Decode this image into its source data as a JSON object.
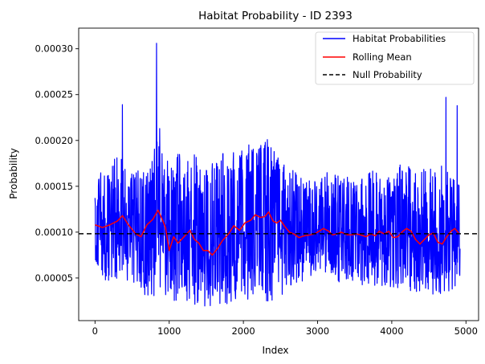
{
  "chart_data": {
    "type": "line",
    "title": "Habitat Probability - ID 2393",
    "xlabel": "Index",
    "ylabel": "Probability",
    "xlim": [
      -220,
      5170
    ],
    "ylim": [
      3.5e-06,
      0.0003225
    ],
    "x_ticks": [
      0,
      1000,
      2000,
      3000,
      4000,
      5000
    ],
    "x_tick_labels": [
      "0",
      "1000",
      "2000",
      "3000",
      "4000",
      "5000"
    ],
    "y_ticks": [
      5e-05,
      0.0001,
      0.00015,
      0.0002,
      0.00025,
      0.0003
    ],
    "y_tick_labels": [
      "0.00005",
      "0.00010",
      "0.00015",
      "0.00020",
      "0.00025",
      "0.00030"
    ],
    "grid": false,
    "legend_position": "top-right",
    "series": [
      {
        "name": "Habitat Probabilities",
        "color": "#0000ff",
        "style": "solid",
        "x_start": 0,
        "x_end": 4920,
        "envelope_x": [
          0,
          100,
          200,
          300,
          400,
          500,
          600,
          700,
          800,
          900,
          1000,
          1100,
          1200,
          1300,
          1400,
          1500,
          1600,
          1700,
          1800,
          1900,
          2000,
          2100,
          2200,
          2300,
          2400,
          2500,
          2600,
          2700,
          2800,
          2900,
          3000,
          3100,
          3200,
          3300,
          3400,
          3500,
          3600,
          3700,
          3800,
          3900,
          4000,
          4100,
          4200,
          4300,
          4400,
          4500,
          4600,
          4700,
          4800,
          4900
        ],
        "envelope_high": [
          0.000145,
          0.000175,
          0.00018,
          0.00019,
          0.00018,
          0.00017,
          0.00017,
          0.00018,
          0.000205,
          0.00019,
          0.000175,
          0.00019,
          0.00018,
          0.00019,
          0.00018,
          0.000175,
          0.000175,
          0.00019,
          0.000185,
          0.000195,
          0.00019,
          0.0002,
          0.000195,
          0.000205,
          0.00019,
          0.00018,
          0.000175,
          0.000165,
          0.000165,
          0.00016,
          0.00016,
          0.000165,
          0.000165,
          0.00016,
          0.00016,
          0.000155,
          0.00016,
          0.000165,
          0.00017,
          0.00016,
          0.000165,
          0.000175,
          0.000175,
          0.000165,
          0.00017,
          0.00017,
          0.00017,
          0.000175,
          0.00017,
          0.000165
        ],
        "envelope_low": [
          7e-05,
          5e-05,
          4.5e-05,
          4e-05,
          4.5e-05,
          4e-05,
          3.5e-05,
          3e-05,
          3e-05,
          3.5e-05,
          2.5e-05,
          2.2e-05,
          2.2e-05,
          2.1e-05,
          2e-05,
          1.9e-05,
          2e-05,
          2e-05,
          2.1e-05,
          2.2e-05,
          2.5e-05,
          2.4e-05,
          2.5e-05,
          2.3e-05,
          2.5e-05,
          2.8e-05,
          3.5e-05,
          4e-05,
          4.5e-05,
          5e-05,
          5.5e-05,
          5.5e-05,
          5e-05,
          4.5e-05,
          4.5e-05,
          4.5e-05,
          4e-05,
          4e-05,
          4e-05,
          4e-05,
          3.7e-05,
          3.5e-05,
          3.5e-05,
          3.5e-05,
          3.5e-05,
          3.3e-05,
          3.2e-05,
          3.3e-05,
          3.5e-05,
          4e-05
        ],
        "spikes": [
          {
            "x": 830,
            "y": 0.000306
          },
          {
            "x": 370,
            "y": 0.000239
          },
          {
            "x": 870,
            "y": 0.000213
          },
          {
            "x": 4730,
            "y": 0.000247
          },
          {
            "x": 4880,
            "y": 0.000238
          }
        ]
      },
      {
        "name": "Rolling Mean",
        "color": "#ff0000",
        "style": "solid",
        "x": [
          0,
          100,
          200,
          300,
          370,
          450,
          550,
          620,
          700,
          780,
          850,
          900,
          950,
          1000,
          1060,
          1120,
          1200,
          1280,
          1340,
          1400,
          1460,
          1520,
          1580,
          1650,
          1720,
          1800,
          1870,
          1950,
          2020,
          2100,
          2160,
          2230,
          2290,
          2340,
          2400,
          2450,
          2500,
          2560,
          2620,
          2680,
          2750,
          2820,
          2900,
          2960,
          3020,
          3080,
          3150,
          3200,
          3260,
          3320,
          3400,
          3460,
          3520,
          3580,
          3650,
          3720,
          3780,
          3830,
          3900,
          3960,
          4020,
          4080,
          4150,
          4200,
          4260,
          4320,
          4380,
          4440,
          4500,
          4560,
          4620,
          4680,
          4740,
          4800,
          4850,
          4900
        ],
        "y": [
          0.000108,
          0.000105,
          0.000108,
          0.000112,
          0.000118,
          0.000108,
          9.8e-05,
          9.5e-05,
          0.000108,
          0.000114,
          0.000124,
          0.000115,
          0.000105,
          8e-05,
          9.5e-05,
          8.8e-05,
          9.5e-05,
          0.000102,
          9.2e-05,
          8.8e-05,
          8e-05,
          8e-05,
          7.5e-05,
          8.2e-05,
          9.1e-05,
          9.8e-05,
          0.000107,
          0.000102,
          0.00011,
          0.000113,
          0.000119,
          0.000116,
          0.000117,
          0.000122,
          0.000112,
          0.00011,
          0.000113,
          0.000106,
          0.0001,
          9.8e-05,
          9.4e-05,
          9.6e-05,
          9.7e-05,
          9.8e-05,
          0.000101,
          0.000104,
          0.000101,
          9.7e-05,
          9.8e-05,
          0.0001,
          9.7e-05,
          9.7e-05,
          9.8e-05,
          9.7e-05,
          9.5e-05,
          9.8e-05,
          9.6e-05,
          0.000101,
          9.8e-05,
          0.000101,
          9.4e-05,
          9.5e-05,
          0.000101,
          0.000104,
          0.000101,
          9.2e-05,
          8.7e-05,
          9.2e-05,
          9.7e-05,
          9.9e-05,
          8.9e-05,
          8.7e-05,
          9.5e-05,
          0.000101,
          0.000104,
          9.9e-05
        ]
      },
      {
        "name": "Null Probability",
        "color": "#000000",
        "style": "dashed",
        "y_constant": 9.83e-05
      }
    ]
  }
}
